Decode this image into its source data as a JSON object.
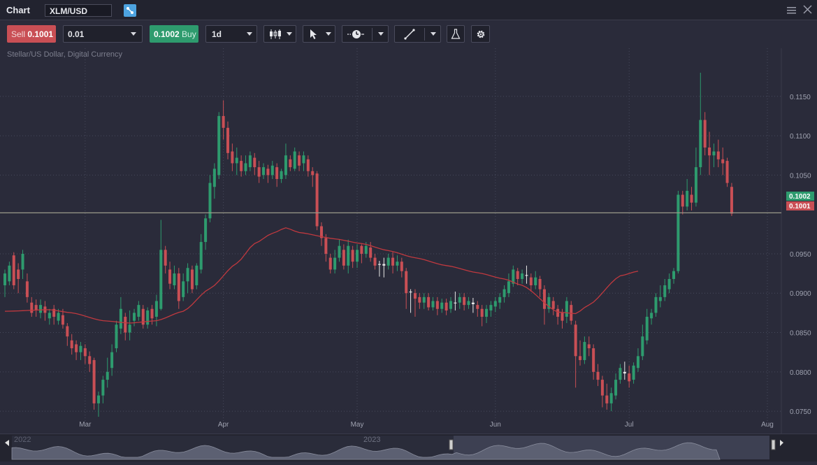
{
  "window": {
    "title": "Chart",
    "symbol": "XLM/USD"
  },
  "toolbar": {
    "sell_label": "Sell",
    "sell_price": "0.1001",
    "quantity": "0.01",
    "buy_price": "0.1002",
    "buy_label": "Buy",
    "timeframe": "1d",
    "icons": [
      "candlestick-icon",
      "cursor-icon",
      "clock-icon",
      "line-tool-icon",
      "flask-icon",
      "gear-icon"
    ]
  },
  "instrument_description": "Stellar/US Dollar, Digital Currency",
  "navigator": {
    "labels": [
      "2022",
      "2023"
    ]
  },
  "colors": {
    "up": "#2e9b6e",
    "down": "#c94f55",
    "ma": "#c0393f",
    "neutral": "#e8e8e8",
    "price_line": "#9a9a8a"
  },
  "chart_data": {
    "type": "candlestick",
    "timeframe": "1d",
    "ylim": [
      0.0743,
      0.118
    ],
    "y_ticks": [
      "0.1150",
      "0.1100",
      "0.1050",
      "0.0950",
      "0.0900",
      "0.0850",
      "0.0800",
      "0.0750"
    ],
    "x_ticks": [
      {
        "label": "Mar",
        "index": 18
      },
      {
        "label": "Apr",
        "index": 49
      },
      {
        "label": "May",
        "index": 79
      },
      {
        "label": "Jun",
        "index": 110
      },
      {
        "label": "Jul",
        "index": 140
      },
      {
        "label": "Aug",
        "index": 171
      }
    ],
    "price_markers": [
      {
        "label": "0.1002",
        "value": 0.1002,
        "kind": "buy"
      },
      {
        "label": "0.1001",
        "value": 0.1001,
        "kind": "sell"
      }
    ],
    "moving_average_anchors": [
      [
        0,
        0.0877
      ],
      [
        10,
        0.0879
      ],
      [
        15,
        0.0875
      ],
      [
        22,
        0.0865
      ],
      [
        28,
        0.0862
      ],
      [
        34,
        0.0865
      ],
      [
        40,
        0.0877
      ],
      [
        46,
        0.0906
      ],
      [
        52,
        0.0938
      ],
      [
        56,
        0.0963
      ],
      [
        60,
        0.0976
      ],
      [
        63,
        0.0983
      ],
      [
        66,
        0.0977
      ],
      [
        74,
        0.0969
      ],
      [
        80,
        0.0963
      ],
      [
        86,
        0.0954
      ],
      [
        92,
        0.0945
      ],
      [
        99,
        0.0935
      ],
      [
        106,
        0.0926
      ],
      [
        112,
        0.0918
      ],
      [
        116,
        0.091
      ],
      [
        124,
        0.0876
      ],
      [
        128,
        0.0874
      ],
      [
        131,
        0.0885
      ],
      [
        138,
        0.0922
      ],
      [
        142,
        0.0928
      ]
    ],
    "candles": [
      [
        0.091,
        0.0925,
        0.0895,
        0.093
      ],
      [
        0.0915,
        0.0935,
        0.091,
        0.094
      ],
      [
        0.0948,
        0.091,
        0.0905,
        0.0952
      ],
      [
        0.093,
        0.0918,
        0.09,
        0.0938
      ],
      [
        0.093,
        0.095,
        0.0918,
        0.0955
      ],
      [
        0.0915,
        0.0895,
        0.0888,
        0.0925
      ],
      [
        0.0888,
        0.0875,
        0.087,
        0.0895
      ],
      [
        0.0885,
        0.0878,
        0.087,
        0.0892
      ],
      [
        0.0875,
        0.0885,
        0.0868,
        0.0892
      ],
      [
        0.0883,
        0.0875,
        0.0865,
        0.089
      ],
      [
        0.0868,
        0.0875,
        0.086,
        0.088
      ],
      [
        0.088,
        0.087,
        0.086,
        0.0885
      ],
      [
        0.0865,
        0.0875,
        0.086,
        0.088
      ],
      [
        0.0872,
        0.086,
        0.0855,
        0.088
      ],
      [
        0.0858,
        0.0845,
        0.0833,
        0.0862
      ],
      [
        0.084,
        0.083,
        0.0822,
        0.0848
      ],
      [
        0.0835,
        0.0825,
        0.0815,
        0.084
      ],
      [
        0.0825,
        0.0833,
        0.0815,
        0.0838
      ],
      [
        0.083,
        0.082,
        0.081,
        0.0835
      ],
      [
        0.082,
        0.081,
        0.08,
        0.0826
      ],
      [
        0.0815,
        0.076,
        0.0752,
        0.0818
      ],
      [
        0.076,
        0.077,
        0.0743,
        0.0775
      ],
      [
        0.077,
        0.079,
        0.076,
        0.0795
      ],
      [
        0.079,
        0.08,
        0.078,
        0.0818
      ],
      [
        0.0805,
        0.0825,
        0.0795,
        0.0835
      ],
      [
        0.083,
        0.086,
        0.0825,
        0.0865
      ],
      [
        0.0855,
        0.088,
        0.0848,
        0.0895
      ],
      [
        0.087,
        0.085,
        0.084,
        0.0875
      ],
      [
        0.085,
        0.086,
        0.084,
        0.0878
      ],
      [
        0.0865,
        0.0875,
        0.0858,
        0.088
      ],
      [
        0.087,
        0.0885,
        0.0865,
        0.089
      ],
      [
        0.088,
        0.086,
        0.0855,
        0.0885
      ],
      [
        0.086,
        0.0878,
        0.0855,
        0.0882
      ],
      [
        0.088,
        0.0868,
        0.086,
        0.0885
      ],
      [
        0.087,
        0.089,
        0.0858,
        0.0898
      ],
      [
        0.088,
        0.0955,
        0.0878,
        0.0993
      ],
      [
        0.0955,
        0.0935,
        0.0925,
        0.096
      ],
      [
        0.093,
        0.0912,
        0.0905,
        0.094
      ],
      [
        0.091,
        0.0925,
        0.0905,
        0.0935
      ],
      [
        0.0925,
        0.089,
        0.088,
        0.0932
      ],
      [
        0.0895,
        0.0915,
        0.089,
        0.0925
      ],
      [
        0.0915,
        0.0932,
        0.09,
        0.0938
      ],
      [
        0.093,
        0.0905,
        0.09,
        0.0935
      ],
      [
        0.091,
        0.0935,
        0.0905,
        0.0938
      ],
      [
        0.093,
        0.0965,
        0.0925,
        0.0975
      ],
      [
        0.0965,
        0.0995,
        0.0955,
        0.1
      ],
      [
        0.0995,
        0.104,
        0.099,
        0.105
      ],
      [
        0.1035,
        0.1058,
        0.102,
        0.1065
      ],
      [
        0.105,
        0.1125,
        0.1045,
        0.113
      ],
      [
        0.1125,
        0.111,
        0.1095,
        0.1145
      ],
      [
        0.111,
        0.1078,
        0.107,
        0.1118
      ],
      [
        0.108,
        0.1065,
        0.1055,
        0.109
      ],
      [
        0.1065,
        0.1072,
        0.105,
        0.1085
      ],
      [
        0.1068,
        0.1055,
        0.1048,
        0.1075
      ],
      [
        0.1055,
        0.1065,
        0.105,
        0.1075
      ],
      [
        0.106,
        0.1075,
        0.1055,
        0.108
      ],
      [
        0.1072,
        0.106,
        0.105,
        0.1078
      ],
      [
        0.106,
        0.1048,
        0.104,
        0.1068
      ],
      [
        0.105,
        0.106,
        0.1045,
        0.1065
      ],
      [
        0.1058,
        0.105,
        0.104,
        0.1063
      ],
      [
        0.105,
        0.1062,
        0.1045,
        0.1068
      ],
      [
        0.106,
        0.1045,
        0.1035,
        0.1065
      ],
      [
        0.1045,
        0.1055,
        0.104,
        0.1058
      ],
      [
        0.105,
        0.1075,
        0.1045,
        0.109
      ],
      [
        0.107,
        0.106,
        0.1055,
        0.1075
      ],
      [
        0.1058,
        0.108,
        0.1055,
        0.1085
      ],
      [
        0.1075,
        0.1062,
        0.1055,
        0.108
      ],
      [
        0.1065,
        0.1075,
        0.1055,
        0.108
      ],
      [
        0.107,
        0.1055,
        0.1048,
        0.1075
      ],
      [
        0.1055,
        0.105,
        0.1035,
        0.106
      ],
      [
        0.1052,
        0.0985,
        0.098,
        0.1055
      ],
      [
        0.0985,
        0.097,
        0.096,
        0.099
      ],
      [
        0.097,
        0.095,
        0.094,
        0.0975
      ],
      [
        0.0945,
        0.093,
        0.0925,
        0.095
      ],
      [
        0.093,
        0.0945,
        0.0925,
        0.0955
      ],
      [
        0.0945,
        0.096,
        0.094,
        0.0968
      ],
      [
        0.0955,
        0.0935,
        0.093,
        0.0962
      ],
      [
        0.0935,
        0.096,
        0.0925,
        0.0968
      ],
      [
        0.0955,
        0.094,
        0.0932,
        0.096
      ],
      [
        0.094,
        0.0955,
        0.0932,
        0.0962
      ],
      [
        0.096,
        0.095,
        0.0938,
        0.0962
      ],
      [
        0.095,
        0.096,
        0.0945,
        0.0965
      ],
      [
        0.0958,
        0.0945,
        0.094,
        0.0965
      ],
      [
        0.0945,
        0.0935,
        0.093,
        0.095
      ],
      [
        0.0936,
        0.0937,
        0.0921,
        0.0941
      ],
      [
        0.0937,
        0.0935,
        0.092,
        0.0945
      ],
      [
        0.0935,
        0.0945,
        0.093,
        0.095
      ],
      [
        0.0945,
        0.0935,
        0.0925,
        0.0952
      ],
      [
        0.0935,
        0.094,
        0.0928,
        0.0948
      ],
      [
        0.094,
        0.0928,
        0.092,
        0.0945
      ],
      [
        0.0928,
        0.09,
        0.088,
        0.0932
      ],
      [
        0.0902,
        0.0901,
        0.0875,
        0.0905
      ],
      [
        0.09,
        0.0893,
        0.087,
        0.0905
      ],
      [
        0.0895,
        0.0888,
        0.088,
        0.09
      ],
      [
        0.0888,
        0.0895,
        0.088,
        0.09
      ],
      [
        0.0895,
        0.0882,
        0.0878,
        0.09
      ],
      [
        0.0882,
        0.089,
        0.0878,
        0.0895
      ],
      [
        0.089,
        0.088,
        0.0872,
        0.0895
      ],
      [
        0.088,
        0.0888,
        0.0875,
        0.0893
      ],
      [
        0.0888,
        0.0878,
        0.0872,
        0.0893
      ],
      [
        0.088,
        0.089,
        0.0875,
        0.0895
      ],
      [
        0.0887,
        0.0888,
        0.0878,
        0.0902
      ],
      [
        0.0888,
        0.0895,
        0.088,
        0.09
      ],
      [
        0.0895,
        0.0885,
        0.0878,
        0.09
      ],
      [
        0.0885,
        0.089,
        0.088,
        0.0895
      ],
      [
        0.0888,
        0.0886,
        0.0875,
        0.0894
      ],
      [
        0.0885,
        0.088,
        0.087,
        0.089
      ],
      [
        0.088,
        0.087,
        0.0858,
        0.0885
      ],
      [
        0.087,
        0.088,
        0.0862,
        0.0885
      ],
      [
        0.0878,
        0.0885,
        0.087,
        0.089
      ],
      [
        0.0883,
        0.089,
        0.0876,
        0.0895
      ],
      [
        0.0888,
        0.0895,
        0.088,
        0.09
      ],
      [
        0.0895,
        0.0905,
        0.0888,
        0.091
      ],
      [
        0.09,
        0.0915,
        0.0895,
        0.0925
      ],
      [
        0.0912,
        0.093,
        0.0908,
        0.0935
      ],
      [
        0.0928,
        0.0918,
        0.091,
        0.0932
      ],
      [
        0.0918,
        0.0925,
        0.0912,
        0.093
      ],
      [
        0.0922,
        0.0923,
        0.0912,
        0.0935
      ],
      [
        0.092,
        0.091,
        0.0902,
        0.0925
      ],
      [
        0.091,
        0.092,
        0.0905,
        0.0928
      ],
      [
        0.0918,
        0.0905,
        0.0895,
        0.0922
      ],
      [
        0.0905,
        0.088,
        0.086,
        0.091
      ],
      [
        0.088,
        0.0895,
        0.0875,
        0.09
      ],
      [
        0.089,
        0.088,
        0.0872,
        0.0895
      ],
      [
        0.088,
        0.087,
        0.086,
        0.0885
      ],
      [
        0.0875,
        0.0865,
        0.0855,
        0.088
      ],
      [
        0.087,
        0.089,
        0.0862,
        0.0895
      ],
      [
        0.0885,
        0.0865,
        0.086,
        0.089
      ],
      [
        0.086,
        0.082,
        0.078,
        0.0865
      ],
      [
        0.082,
        0.0815,
        0.0808,
        0.084
      ],
      [
        0.0815,
        0.0838,
        0.081,
        0.0845
      ],
      [
        0.0835,
        0.083,
        0.082,
        0.0845
      ],
      [
        0.083,
        0.08,
        0.079,
        0.0835
      ],
      [
        0.08,
        0.079,
        0.0782,
        0.081
      ],
      [
        0.079,
        0.077,
        0.0755,
        0.0795
      ],
      [
        0.077,
        0.076,
        0.0752,
        0.0785
      ],
      [
        0.076,
        0.0773,
        0.075,
        0.078
      ],
      [
        0.077,
        0.079,
        0.0765,
        0.0798
      ],
      [
        0.079,
        0.0805,
        0.0785,
        0.081
      ],
      [
        0.08,
        0.0798,
        0.079,
        0.0813
      ],
      [
        0.0798,
        0.0788,
        0.078,
        0.0808
      ],
      [
        0.079,
        0.0808,
        0.0785,
        0.0812
      ],
      [
        0.0805,
        0.082,
        0.08,
        0.083
      ],
      [
        0.082,
        0.0845,
        0.0815,
        0.086
      ],
      [
        0.084,
        0.087,
        0.0835,
        0.088
      ],
      [
        0.0868,
        0.0875,
        0.086,
        0.088
      ],
      [
        0.0875,
        0.0895,
        0.087,
        0.09
      ],
      [
        0.089,
        0.0895,
        0.0882,
        0.091
      ],
      [
        0.0895,
        0.091,
        0.089,
        0.0918
      ],
      [
        0.0905,
        0.0918,
        0.09,
        0.0925
      ],
      [
        0.0918,
        0.0928,
        0.0912,
        0.0932
      ],
      [
        0.0928,
        0.1025,
        0.0925,
        0.103
      ],
      [
        0.1025,
        0.101,
        0.1,
        0.103
      ],
      [
        0.101,
        0.103,
        0.1005,
        0.1045
      ],
      [
        0.1025,
        0.1015,
        0.1005,
        0.1035
      ],
      [
        0.1015,
        0.106,
        0.101,
        0.1085
      ],
      [
        0.106,
        0.112,
        0.105,
        0.118
      ],
      [
        0.112,
        0.1085,
        0.1075,
        0.113
      ],
      [
        0.1085,
        0.1075,
        0.105,
        0.1105
      ],
      [
        0.1075,
        0.108,
        0.106,
        0.109
      ],
      [
        0.108,
        0.107,
        0.106,
        0.1095
      ],
      [
        0.107,
        0.1065,
        0.105,
        0.1085
      ],
      [
        0.1068,
        0.104,
        0.1035,
        0.1072
      ],
      [
        0.1035,
        0.1001,
        0.0998,
        0.104
      ]
    ]
  }
}
